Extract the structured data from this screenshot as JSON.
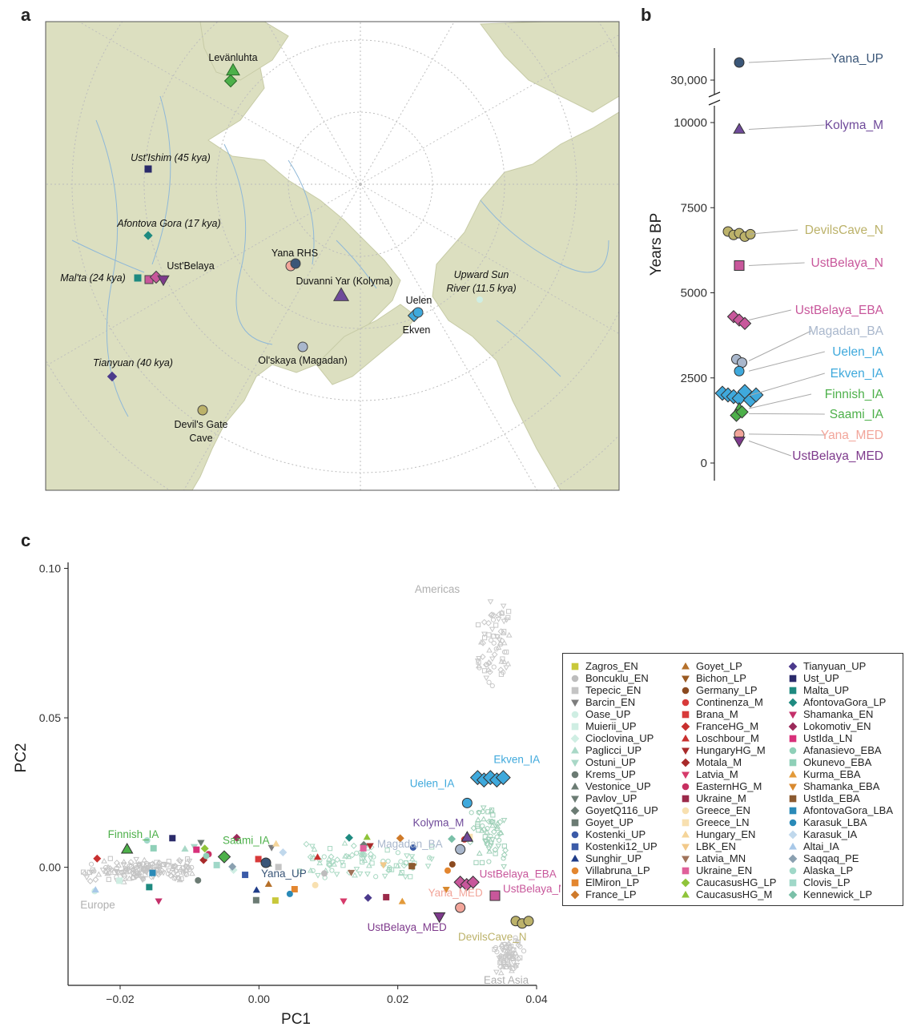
{
  "panels": {
    "a": "a",
    "b": "b",
    "c": "c"
  },
  "colors": {
    "land": "#dcdfc0",
    "sea": "#ffffff",
    "river": "#8fb8d8",
    "grid": "#bdbdbd",
    "Yana_UP": "#3a5678",
    "Kolyma_M": "#6f4a9a",
    "DevilsCave_N": "#bcb26a",
    "UstBelaya_N": "#c8579b",
    "UstBelaya_EBA": "#c8579b",
    "Magadan_BA": "#a9b7cc",
    "Uelen_IA": "#3fa9dc",
    "Ekven_IA": "#3fa9dc",
    "Finnish_IA": "#4db04a",
    "Saami_IA": "#4db04a",
    "Yana_MED": "#f2a59a",
    "UstBelaya_MED": "#7e3a8c"
  },
  "map": {
    "labels": [
      {
        "text": "Levänluhta",
        "italic": false
      },
      {
        "text": "Ust'Ishim (45 kya)",
        "italic": true
      },
      {
        "text": "Afontova Gora (17 kya)",
        "italic": true
      },
      {
        "text": "Ust'Belaya",
        "italic": false
      },
      {
        "text": "Mal'ta (24 kya)",
        "italic": true
      },
      {
        "text": "Yana RHS",
        "italic": false
      },
      {
        "text": "Duvanni Yar (Kolyma)",
        "italic": false
      },
      {
        "text": "Upward Sun",
        "italic": true
      },
      {
        "text": "River (11.5 kya)",
        "italic": true
      },
      {
        "text": "Uelen",
        "italic": false
      },
      {
        "text": "Ekven",
        "italic": false
      },
      {
        "text": "Ol'skaya (Magadan)",
        "italic": false
      },
      {
        "text": "Tianyuan (40 kya)",
        "italic": true
      },
      {
        "text": "Devil's Gate",
        "italic": false
      },
      {
        "text": "Cave",
        "italic": false
      }
    ]
  },
  "chart_data": [
    {
      "type": "scatter",
      "title": "",
      "ylabel": "Years BP",
      "ytick_labels": [
        "30,000",
        "10000",
        "7500",
        "5000",
        "2500",
        "0"
      ],
      "y_break": "between 10000 and 30,000",
      "series": [
        {
          "name": "Yana_UP",
          "values": [
            31600
          ]
        },
        {
          "name": "Kolyma_M",
          "values": [
            9800
          ]
        },
        {
          "name": "DevilsCave_N",
          "values": [
            6800,
            6700,
            6750,
            6650,
            6720
          ]
        },
        {
          "name": "UstBelaya_N",
          "values": [
            5800
          ]
        },
        {
          "name": "UstBelaya_EBA",
          "values": [
            4300,
            4200,
            4100
          ]
        },
        {
          "name": "Magadan_BA",
          "values": [
            3050,
            2950
          ]
        },
        {
          "name": "Uelen_IA",
          "values": [
            2700
          ]
        },
        {
          "name": "Ekven_IA",
          "values": [
            2050,
            2000,
            1950,
            1900,
            2100,
            1850,
            2000
          ]
        },
        {
          "name": "Finnish_IA",
          "values": [
            1600
          ]
        },
        {
          "name": "Saami_IA",
          "values": [
            1400,
            1500
          ]
        },
        {
          "name": "Yana_MED",
          "values": [
            850
          ]
        },
        {
          "name": "UstBelaya_MED",
          "values": [
            650
          ]
        }
      ]
    },
    {
      "type": "scatter",
      "title": "",
      "xlabel": "PC1",
      "ylabel": "PC2",
      "xlim": [
        -0.0275,
        0.04
      ],
      "ylim": [
        -0.0395,
        0.102
      ],
      "xtick_labels": [
        "−0.02",
        "0.00",
        "0.02",
        "0.04"
      ],
      "ytick_labels": [
        "0.10",
        "0.05",
        "0.00"
      ],
      "region_labels": [
        "Americas",
        "Europe",
        "East Asia"
      ],
      "labeled_groups": [
        {
          "name": "Ekven_IA",
          "x": 0.0315,
          "y": 0.03
        },
        {
          "name": "Uelen_IA",
          "x": 0.03,
          "y": 0.0215
        },
        {
          "name": "Kolyma_M",
          "x": 0.03,
          "y": 0.01
        },
        {
          "name": "Magadan_BA",
          "x": 0.029,
          "y": 0.006
        },
        {
          "name": "Finnish_IA",
          "x": -0.019,
          "y": 0.006
        },
        {
          "name": "Saami_IA",
          "x": -0.005,
          "y": 0.0035
        },
        {
          "name": "Yana_UP",
          "x": 0.001,
          "y": 0.0015
        },
        {
          "name": "UstBelaya_EBA",
          "x": 0.029,
          "y": -0.005
        },
        {
          "name": "UstBelaya_N",
          "x": 0.034,
          "y": -0.0095
        },
        {
          "name": "Yana_MED",
          "x": 0.029,
          "y": -0.0135
        },
        {
          "name": "UstBelaya_MED",
          "x": 0.026,
          "y": -0.0165
        },
        {
          "name": "DevilsCave_N",
          "x": 0.037,
          "y": -0.018
        }
      ],
      "legend": {
        "placement": "right",
        "entries": [
          {
            "name": "Zagros_EN",
            "color": "#c8c83a",
            "shape": "square"
          },
          {
            "name": "Boncuklu_EN",
            "color": "#bdbdbd",
            "shape": "circle"
          },
          {
            "name": "Tepecic_EN",
            "color": "#c4c4c4",
            "shape": "square"
          },
          {
            "name": "Barcin_EN",
            "color": "#7d7d7d",
            "shape": "triangle-down"
          },
          {
            "name": "Oase_UP",
            "color": "#cfeee3",
            "shape": "circle"
          },
          {
            "name": "Muierii_UP",
            "color": "#cfeee3",
            "shape": "square"
          },
          {
            "name": "Cioclovina_UP",
            "color": "#cfeee3",
            "shape": "diamond"
          },
          {
            "name": "Paglicci_UP",
            "color": "#a9d8c7",
            "shape": "triangle"
          },
          {
            "name": "Ostuni_UP",
            "color": "#a9d8c7",
            "shape": "triangle-down"
          },
          {
            "name": "Krems_UP",
            "color": "#6b7b73",
            "shape": "circle"
          },
          {
            "name": "Vestonice_UP",
            "color": "#6b7b73",
            "shape": "triangle"
          },
          {
            "name": "Pavlov_UP",
            "color": "#6b7b73",
            "shape": "triangle-down"
          },
          {
            "name": "GoyetQ116_UP",
            "color": "#6b7b73",
            "shape": "diamond"
          },
          {
            "name": "Goyet_UP",
            "color": "#6b7b73",
            "shape": "square"
          },
          {
            "name": "Kostenki_UP",
            "color": "#3b5ba8",
            "shape": "circle"
          },
          {
            "name": "Kostenki12_UP",
            "color": "#3b5ba8",
            "shape": "square"
          },
          {
            "name": "Sunghir_UP",
            "color": "#1f3c88",
            "shape": "triangle"
          },
          {
            "name": "Villabruna_LP",
            "color": "#e3862f",
            "shape": "circle"
          },
          {
            "name": "ElMiron_LP",
            "color": "#e3862f",
            "shape": "square"
          },
          {
            "name": "France_LP",
            "color": "#cf7a2a",
            "shape": "diamond"
          },
          {
            "name": "Goyet_LP",
            "color": "#b5702a",
            "shape": "triangle"
          },
          {
            "name": "Bichon_LP",
            "color": "#9a5a22",
            "shape": "triangle-down"
          },
          {
            "name": "Germany_LP",
            "color": "#8b4a20",
            "shape": "circle"
          },
          {
            "name": "Continenza_M",
            "color": "#d83a3a",
            "shape": "circle"
          },
          {
            "name": "Brana_M",
            "color": "#d83a3a",
            "shape": "square"
          },
          {
            "name": "FranceHG_M",
            "color": "#c8302f",
            "shape": "diamond"
          },
          {
            "name": "Loschbour_M",
            "color": "#c8302f",
            "shape": "triangle"
          },
          {
            "name": "HungaryHG_M",
            "color": "#a82a2a",
            "shape": "triangle-down"
          },
          {
            "name": "Motala_M",
            "color": "#a82a2a",
            "shape": "diamond"
          },
          {
            "name": "Latvia_M",
            "color": "#d63a6a",
            "shape": "triangle-down"
          },
          {
            "name": "EasternHG_M",
            "color": "#c73061",
            "shape": "circle"
          },
          {
            "name": "Ukraine_M",
            "color": "#9b2a4a",
            "shape": "square"
          },
          {
            "name": "Greece_EN",
            "color": "#f8e0b0",
            "shape": "circle"
          },
          {
            "name": "Greece_LN",
            "color": "#f8e0b0",
            "shape": "square"
          },
          {
            "name": "Hungary_EN",
            "color": "#f5d59a",
            "shape": "triangle"
          },
          {
            "name": "LBK_EN",
            "color": "#f2c98a",
            "shape": "triangle-down"
          },
          {
            "name": "Latvia_MN",
            "color": "#a0735a",
            "shape": "triangle-down"
          },
          {
            "name": "Ukraine_EN",
            "color": "#e0609a",
            "shape": "square"
          },
          {
            "name": "CaucasusHG_LP",
            "color": "#8fc43a",
            "shape": "diamond"
          },
          {
            "name": "CaucasusHG_M",
            "color": "#8fc43a",
            "shape": "triangle"
          },
          {
            "name": "Tianyuan_UP",
            "color": "#4b3a8c",
            "shape": "diamond"
          },
          {
            "name": "Ust_UP",
            "color": "#2a2a6a",
            "shape": "square"
          },
          {
            "name": "Malta_UP",
            "color": "#1e8a80",
            "shape": "square"
          },
          {
            "name": "AfontovaGora_LP",
            "color": "#1e8a80",
            "shape": "diamond"
          },
          {
            "name": "Shamanka_EN",
            "color": "#c4306a",
            "shape": "triangle-down"
          },
          {
            "name": "Lokomotiv_EN",
            "color": "#9b2a5a",
            "shape": "diamond"
          },
          {
            "name": "UstIda_LN",
            "color": "#d8307a",
            "shape": "square"
          },
          {
            "name": "Afanasievo_EBA",
            "color": "#8fd0b8",
            "shape": "circle"
          },
          {
            "name": "Okunevo_EBA",
            "color": "#8fd0b8",
            "shape": "square"
          },
          {
            "name": "Kurma_EBA",
            "color": "#e39a3a",
            "shape": "triangle"
          },
          {
            "name": "Shamanka_EBA",
            "color": "#d8892f",
            "shape": "triangle-down"
          },
          {
            "name": "UstIda_EBA",
            "color": "#8b5a30",
            "shape": "square"
          },
          {
            "name": "AfontovaGora_LBA",
            "color": "#2a8ab8",
            "shape": "square"
          },
          {
            "name": "Karasuk_LBA",
            "color": "#2a8ab8",
            "shape": "circle"
          },
          {
            "name": "Karasuk_IA",
            "color": "#c0d8ec",
            "shape": "diamond"
          },
          {
            "name": "Altai_IA",
            "color": "#a8c8e8",
            "shape": "triangle"
          },
          {
            "name": "Saqqaq_PE",
            "color": "#8aa0b0",
            "shape": "diamond"
          },
          {
            "name": "Alaska_LP",
            "color": "#a0d8c8",
            "shape": "circle"
          },
          {
            "name": "Clovis_LP",
            "color": "#a0d8c8",
            "shape": "square"
          },
          {
            "name": "Kennewick_LP",
            "color": "#7ac0a8",
            "shape": "diamond"
          }
        ]
      }
    }
  ]
}
